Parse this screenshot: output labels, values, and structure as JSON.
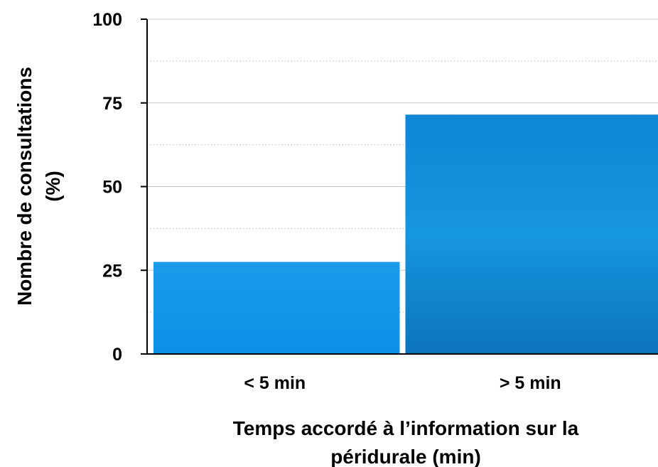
{
  "chart_data": {
    "type": "bar",
    "categories": [
      "< 5 min",
      "> 5 min"
    ],
    "values": [
      27.5,
      71.5
    ],
    "ylim": [
      0,
      100
    ],
    "yticks": [
      0,
      25,
      50,
      75,
      100
    ],
    "minor_gridlines": [
      12.5,
      37.5,
      62.5,
      87.5
    ],
    "xlabel": "Temps accordé à l’information sur la péridurale (min)",
    "xlabel_lines": [
      "Temps accordé à l’information sur la",
      "péridurale (min)"
    ],
    "ylabel": "Nombre de consultations (%)",
    "ylabel_lines": [
      "Nombre de consultations",
      "(%)"
    ],
    "grid": true,
    "bar_colors": [
      "#0a8de0",
      "#0b78c8"
    ]
  }
}
